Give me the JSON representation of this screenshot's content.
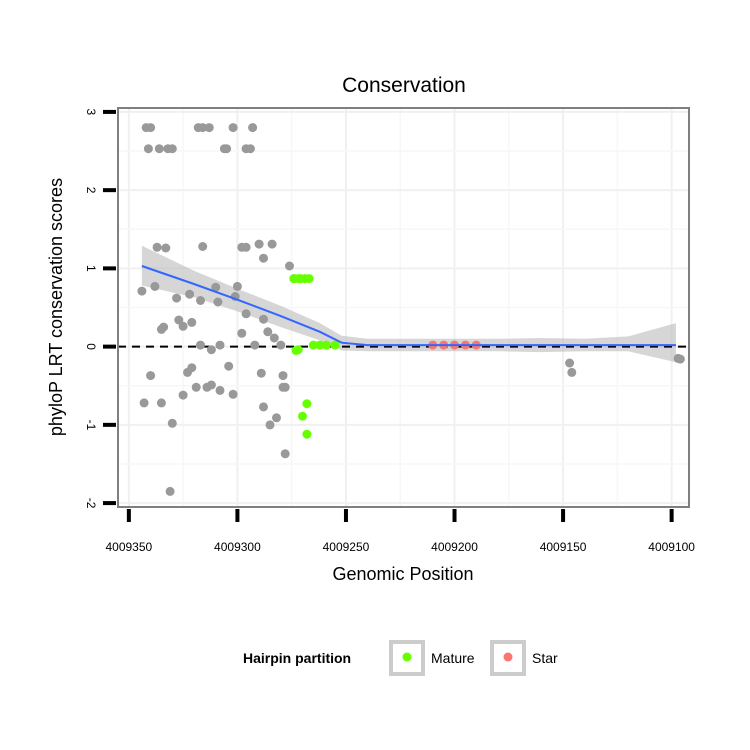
{
  "chart_data": {
    "type": "scatter",
    "title": "Conservation",
    "xlabel": "Genomic Position",
    "ylabel": "phyloP LRT conservation scores",
    "xlim": [
      4009355,
      4009092
    ],
    "x_reversed": true,
    "ylim": [
      -2.05,
      3.05
    ],
    "x_ticks": [
      4009350,
      4009300,
      4009250,
      4009200,
      4009150,
      4009100
    ],
    "x_tick_labels": [
      "4009350",
      "4009300",
      "4009250",
      "4009200",
      "4009150",
      "4009100"
    ],
    "y_ticks": [
      -2,
      -1,
      0,
      1,
      2,
      3
    ],
    "y_tick_labels": [
      "-2",
      "-1",
      "0",
      "1",
      "2",
      "3"
    ],
    "grid": true,
    "reference_line": {
      "y": 0,
      "style": "dashed",
      "color": "#000000"
    },
    "colors": {
      "other": "#999999",
      "Mature": "#66ff00",
      "Star": "#f8766d",
      "smooth_line": "#3366ff",
      "ribbon": "#bbbbbb"
    },
    "legend": {
      "title": "Hairpin partition",
      "position": "bottom",
      "entries": [
        {
          "label": "Mature",
          "color": "#66ff00"
        },
        {
          "label": "Star",
          "color": "#f8766d"
        }
      ]
    },
    "series": [
      {
        "name": "other",
        "points": [
          [
            4009342,
            2.8
          ],
          [
            4009340,
            2.8
          ],
          [
            4009341,
            2.53
          ],
          [
            4009336,
            2.53
          ],
          [
            4009332,
            2.53
          ],
          [
            4009330,
            2.53
          ],
          [
            4009318,
            2.8
          ],
          [
            4009316,
            2.8
          ],
          [
            4009313,
            2.8
          ],
          [
            4009306,
            2.53
          ],
          [
            4009305,
            2.53
          ],
          [
            4009302,
            2.8
          ],
          [
            4009296,
            2.53
          ],
          [
            4009293,
            2.8
          ],
          [
            4009294,
            2.53
          ],
          [
            4009337,
            1.27
          ],
          [
            4009333,
            1.26
          ],
          [
            4009316,
            1.28
          ],
          [
            4009298,
            1.27
          ],
          [
            4009296,
            1.27
          ],
          [
            4009290,
            1.31
          ],
          [
            4009284,
            1.31
          ],
          [
            4009288,
            1.13
          ],
          [
            4009276,
            1.03
          ],
          [
            4009274,
            0.87
          ],
          [
            4009344,
            0.71
          ],
          [
            4009338,
            0.77
          ],
          [
            4009328,
            0.62
          ],
          [
            4009322,
            0.67
          ],
          [
            4009317,
            0.59
          ],
          [
            4009310,
            0.76
          ],
          [
            4009309,
            0.57
          ],
          [
            4009300,
            0.77
          ],
          [
            4009301,
            0.64
          ],
          [
            4009296,
            0.42
          ],
          [
            4009286,
            0.19
          ],
          [
            4009288,
            0.35
          ],
          [
            4009283,
            0.11
          ],
          [
            4009280,
            0.02
          ],
          [
            4009334,
            0.25
          ],
          [
            4009335,
            0.22
          ],
          [
            4009327,
            0.34
          ],
          [
            4009325,
            0.26
          ],
          [
            4009321,
            0.31
          ],
          [
            4009317,
            0.02
          ],
          [
            4009312,
            -0.04
          ],
          [
            4009308,
            0.02
          ],
          [
            4009298,
            0.17
          ],
          [
            4009292,
            0.02
          ],
          [
            4009304,
            -0.25
          ],
          [
            4009289,
            -0.34
          ],
          [
            4009279,
            -0.37
          ],
          [
            4009340,
            -0.37
          ],
          [
            4009323,
            -0.33
          ],
          [
            4009321,
            -0.27
          ],
          [
            4009319,
            -0.52
          ],
          [
            4009314,
            -0.52
          ],
          [
            4009312,
            -0.49
          ],
          [
            4009308,
            -0.56
          ],
          [
            4009302,
            -0.61
          ],
          [
            4009279,
            -0.52
          ],
          [
            4009278,
            -0.52
          ],
          [
            4009343,
            -0.72
          ],
          [
            4009335,
            -0.72
          ],
          [
            4009325,
            -0.62
          ],
          [
            4009288,
            -0.77
          ],
          [
            4009282,
            -0.91
          ],
          [
            4009285,
            -1.0
          ],
          [
            4009330,
            -0.98
          ],
          [
            4009278,
            -1.37
          ],
          [
            4009331,
            -1.85
          ],
          [
            4009147,
            -0.21
          ],
          [
            4009146,
            -0.33
          ],
          [
            4009097,
            -0.15
          ],
          [
            4009096,
            -0.16
          ]
        ]
      },
      {
        "name": "Mature",
        "points": [
          [
            4009274,
            0.87
          ],
          [
            4009272,
            0.87
          ],
          [
            4009271,
            0.87
          ],
          [
            4009269,
            0.87
          ],
          [
            4009267,
            0.87
          ],
          [
            4009265,
            0.02
          ],
          [
            4009262,
            0.02
          ],
          [
            4009259,
            0.02
          ],
          [
            4009255,
            0.02
          ],
          [
            4009273,
            -0.05
          ],
          [
            4009272,
            -0.04
          ],
          [
            4009268,
            -0.73
          ],
          [
            4009270,
            -0.89
          ],
          [
            4009268,
            -1.12
          ]
        ]
      },
      {
        "name": "Star",
        "points": [
          [
            4009210,
            0.02
          ],
          [
            4009205,
            0.02
          ],
          [
            4009200,
            0.02
          ],
          [
            4009195,
            0.02
          ],
          [
            4009190,
            0.02
          ]
        ]
      }
    ],
    "smooth": {
      "method": "loess",
      "x": [
        4009344,
        4009320,
        4009300,
        4009280,
        4009262,
        4009252,
        4009240,
        4009220,
        4009200,
        4009180,
        4009160,
        4009140,
        4009120,
        4009098
      ],
      "y": [
        1.03,
        0.8,
        0.6,
        0.39,
        0.19,
        0.05,
        0.02,
        0.02,
        0.02,
        0.02,
        0.02,
        0.02,
        0.02,
        0.02
      ],
      "ci_lower": [
        0.78,
        0.63,
        0.45,
        0.25,
        0.08,
        -0.05,
        -0.06,
        -0.06,
        -0.06,
        -0.06,
        -0.07,
        -0.06,
        -0.06,
        -0.2
      ],
      "ci_upper": [
        1.29,
        0.97,
        0.74,
        0.52,
        0.3,
        0.14,
        0.1,
        0.1,
        0.1,
        0.1,
        0.11,
        0.1,
        0.13,
        0.3
      ]
    }
  }
}
